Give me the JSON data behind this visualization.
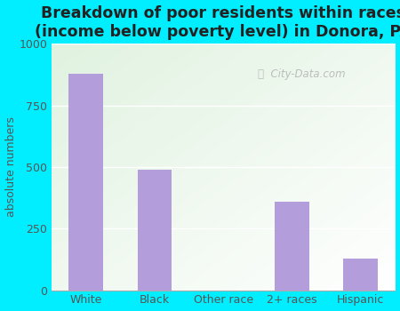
{
  "categories": [
    "White",
    "Black",
    "Other race",
    "2+ races",
    "Hispanic"
  ],
  "values": [
    880,
    490,
    0,
    360,
    130
  ],
  "bar_color": "#b39ddb",
  "title_line1": "Breakdown of poor residents within races",
  "title_line2": "(income below poverty level) in Donora, PA",
  "ylabel": "absolute numbers",
  "ylim": [
    0,
    1000
  ],
  "yticks": [
    0,
    250,
    500,
    750,
    1000
  ],
  "background_outer": "#00eeff",
  "watermark": "City-Data.com",
  "title_fontsize": 12.5,
  "ylabel_fontsize": 9,
  "tick_fontsize": 9,
  "title_color": "#222222",
  "ylabel_color": "#555555",
  "tick_color": "#555555"
}
